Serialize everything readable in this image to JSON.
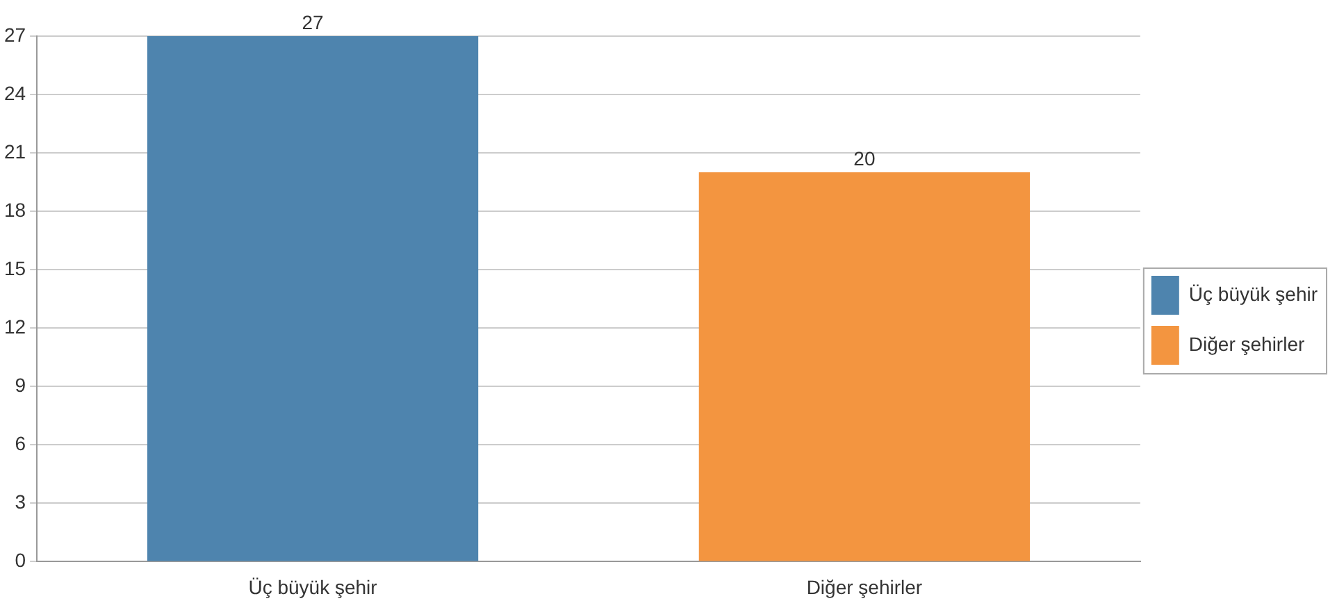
{
  "chart_data": {
    "type": "bar",
    "categories": [
      "Üç büyük şehir",
      "Diğer şehirler"
    ],
    "series": [
      {
        "name": "Üç büyük şehir",
        "color": "#4e84ae",
        "values": [
          27,
          null
        ]
      },
      {
        "name": "Diğer şehirler",
        "color": "#f39540",
        "values": [
          null,
          20
        ]
      }
    ],
    "ylim": [
      0,
      27
    ],
    "yticks": [
      0,
      3,
      6,
      9,
      12,
      15,
      18,
      21,
      24,
      27
    ],
    "grid": "y",
    "legend": "right",
    "data_labels": true
  }
}
